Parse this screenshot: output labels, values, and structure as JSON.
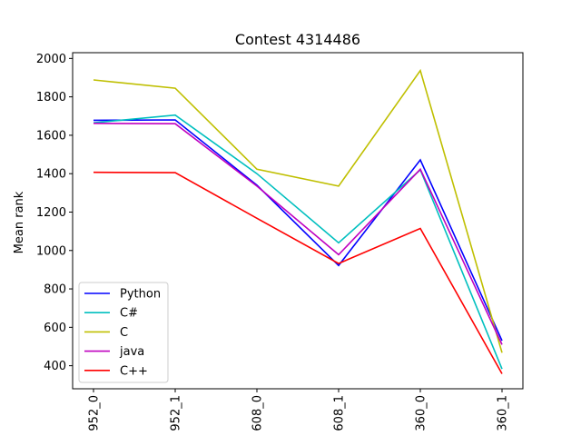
{
  "chart_data": {
    "type": "line",
    "title": "Contest 4314486",
    "xlabel": "",
    "ylabel": "Mean rank",
    "categories": [
      "952_0",
      "952_1",
      "608_0",
      "608_1",
      "360_0",
      "360_1"
    ],
    "ylim": [
      280,
      2030
    ],
    "yticks": [
      400,
      600,
      800,
      1000,
      1200,
      1400,
      1600,
      1800,
      2000
    ],
    "grid": false,
    "legend_position": "lower-left",
    "series": [
      {
        "name": "Python",
        "color": "#0000ff",
        "values": [
          1678,
          1680,
          1340,
          922,
          1472,
          530
        ]
      },
      {
        "name": "C#",
        "color": "#00bfbf",
        "values": [
          1665,
          1705,
          1400,
          1040,
          1420,
          383
        ]
      },
      {
        "name": "C",
        "color": "#bfbf00",
        "values": [
          1888,
          1845,
          1423,
          1335,
          1937,
          468
        ]
      },
      {
        "name": "java",
        "color": "#bf00bf",
        "values": [
          1662,
          1660,
          1335,
          978,
          1423,
          510
        ]
      },
      {
        "name": "C++",
        "color": "#ff0000",
        "values": [
          1407,
          1405,
          1168,
          932,
          1115,
          358
        ]
      }
    ]
  }
}
